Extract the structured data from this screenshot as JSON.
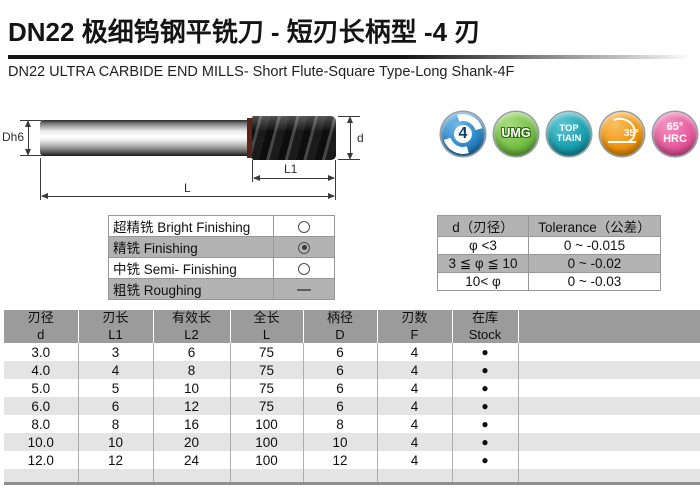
{
  "page": {
    "title": "DN22 极细钨钢平铣刀 - 短刃长柄型 -4 刃",
    "subtitle": "DN22 ULTRA CARBIDE END MILLS- Short Flute-Square Type-Long Shank-4F"
  },
  "diagram": {
    "shank_dia_label": "Dh6",
    "cut_dia_label": "d",
    "flute_length_label": "L1",
    "overall_length_label": "L"
  },
  "badges": [
    {
      "id": "flute-count",
      "icon": "swirl-arrows-icon",
      "lines": [
        "4"
      ],
      "base": "#2b87c8",
      "hi": "#6fb7e6",
      "dark": "#145a94",
      "num_color": "#0d3a63",
      "font": 16
    },
    {
      "id": "umg",
      "lines": [
        "UMG"
      ],
      "base": "#76bf45",
      "hi": "#a8dc7e",
      "dark": "#4d9226",
      "outlined": true,
      "font": 12.5
    },
    {
      "id": "coating-top-tiain",
      "lines": [
        "TOP",
        "TIAIN"
      ],
      "base": "#1aa0b0",
      "hi": "#5cc6d2",
      "dark": "#0a7787",
      "font": 9.5
    },
    {
      "id": "angle-35",
      "icon": "angle-icon",
      "lines": [
        "35°"
      ],
      "base": "#f1950e",
      "hi": "#f8c060",
      "dark": "#c87703",
      "font": 10
    },
    {
      "id": "hardness-65hrc",
      "lines": [
        "65°",
        "HRC"
      ],
      "base": "#e75b9e",
      "hi": "#f293c1",
      "dark": "#c23a7d",
      "font": 11
    }
  ],
  "finishing_table": {
    "rows": [
      {
        "label": "超精铣 Bright Finishing",
        "mark": "circle"
      },
      {
        "label": "精铣 Finishing",
        "mark": "fisheye"
      },
      {
        "label": "中铣 Semi- Finishing",
        "mark": "circle"
      },
      {
        "label": "粗铣 Roughing",
        "mark": "dash"
      }
    ]
  },
  "tolerance_table": {
    "headers": [
      "d（刃径）",
      "Tolerance（公差）"
    ],
    "rows": [
      [
        "φ <3",
        "0 ~ -0.015"
      ],
      [
        "3 ≦ φ ≦ 10",
        "0 ~ -0.02"
      ],
      [
        "10< φ",
        "0 ~ -0.03"
      ]
    ]
  },
  "spec_table": {
    "headers": [
      {
        "zh": "刃径",
        "en": "d"
      },
      {
        "zh": "刃长",
        "en": "L1"
      },
      {
        "zh": "有效长",
        "en": "L2"
      },
      {
        "zh": "全长",
        "en": "L"
      },
      {
        "zh": "柄径",
        "en": "D"
      },
      {
        "zh": "刃数",
        "en": "F"
      },
      {
        "zh": "在库",
        "en": "Stock"
      },
      {
        "zh": "",
        "en": ""
      }
    ],
    "rows": [
      [
        "3.0",
        "3",
        "6",
        "75",
        "6",
        "4",
        "●",
        ""
      ],
      [
        "4.0",
        "4",
        "8",
        "75",
        "6",
        "4",
        "●",
        ""
      ],
      [
        "5.0",
        "5",
        "10",
        "75",
        "6",
        "4",
        "●",
        ""
      ],
      [
        "6.0",
        "6",
        "12",
        "75",
        "6",
        "4",
        "●",
        ""
      ],
      [
        "8.0",
        "8",
        "16",
        "100",
        "8",
        "4",
        "●",
        ""
      ],
      [
        "10.0",
        "10",
        "20",
        "100",
        "10",
        "4",
        "●",
        ""
      ],
      [
        "12.0",
        "12",
        "24",
        "100",
        "12",
        "4",
        "●",
        ""
      ]
    ]
  }
}
